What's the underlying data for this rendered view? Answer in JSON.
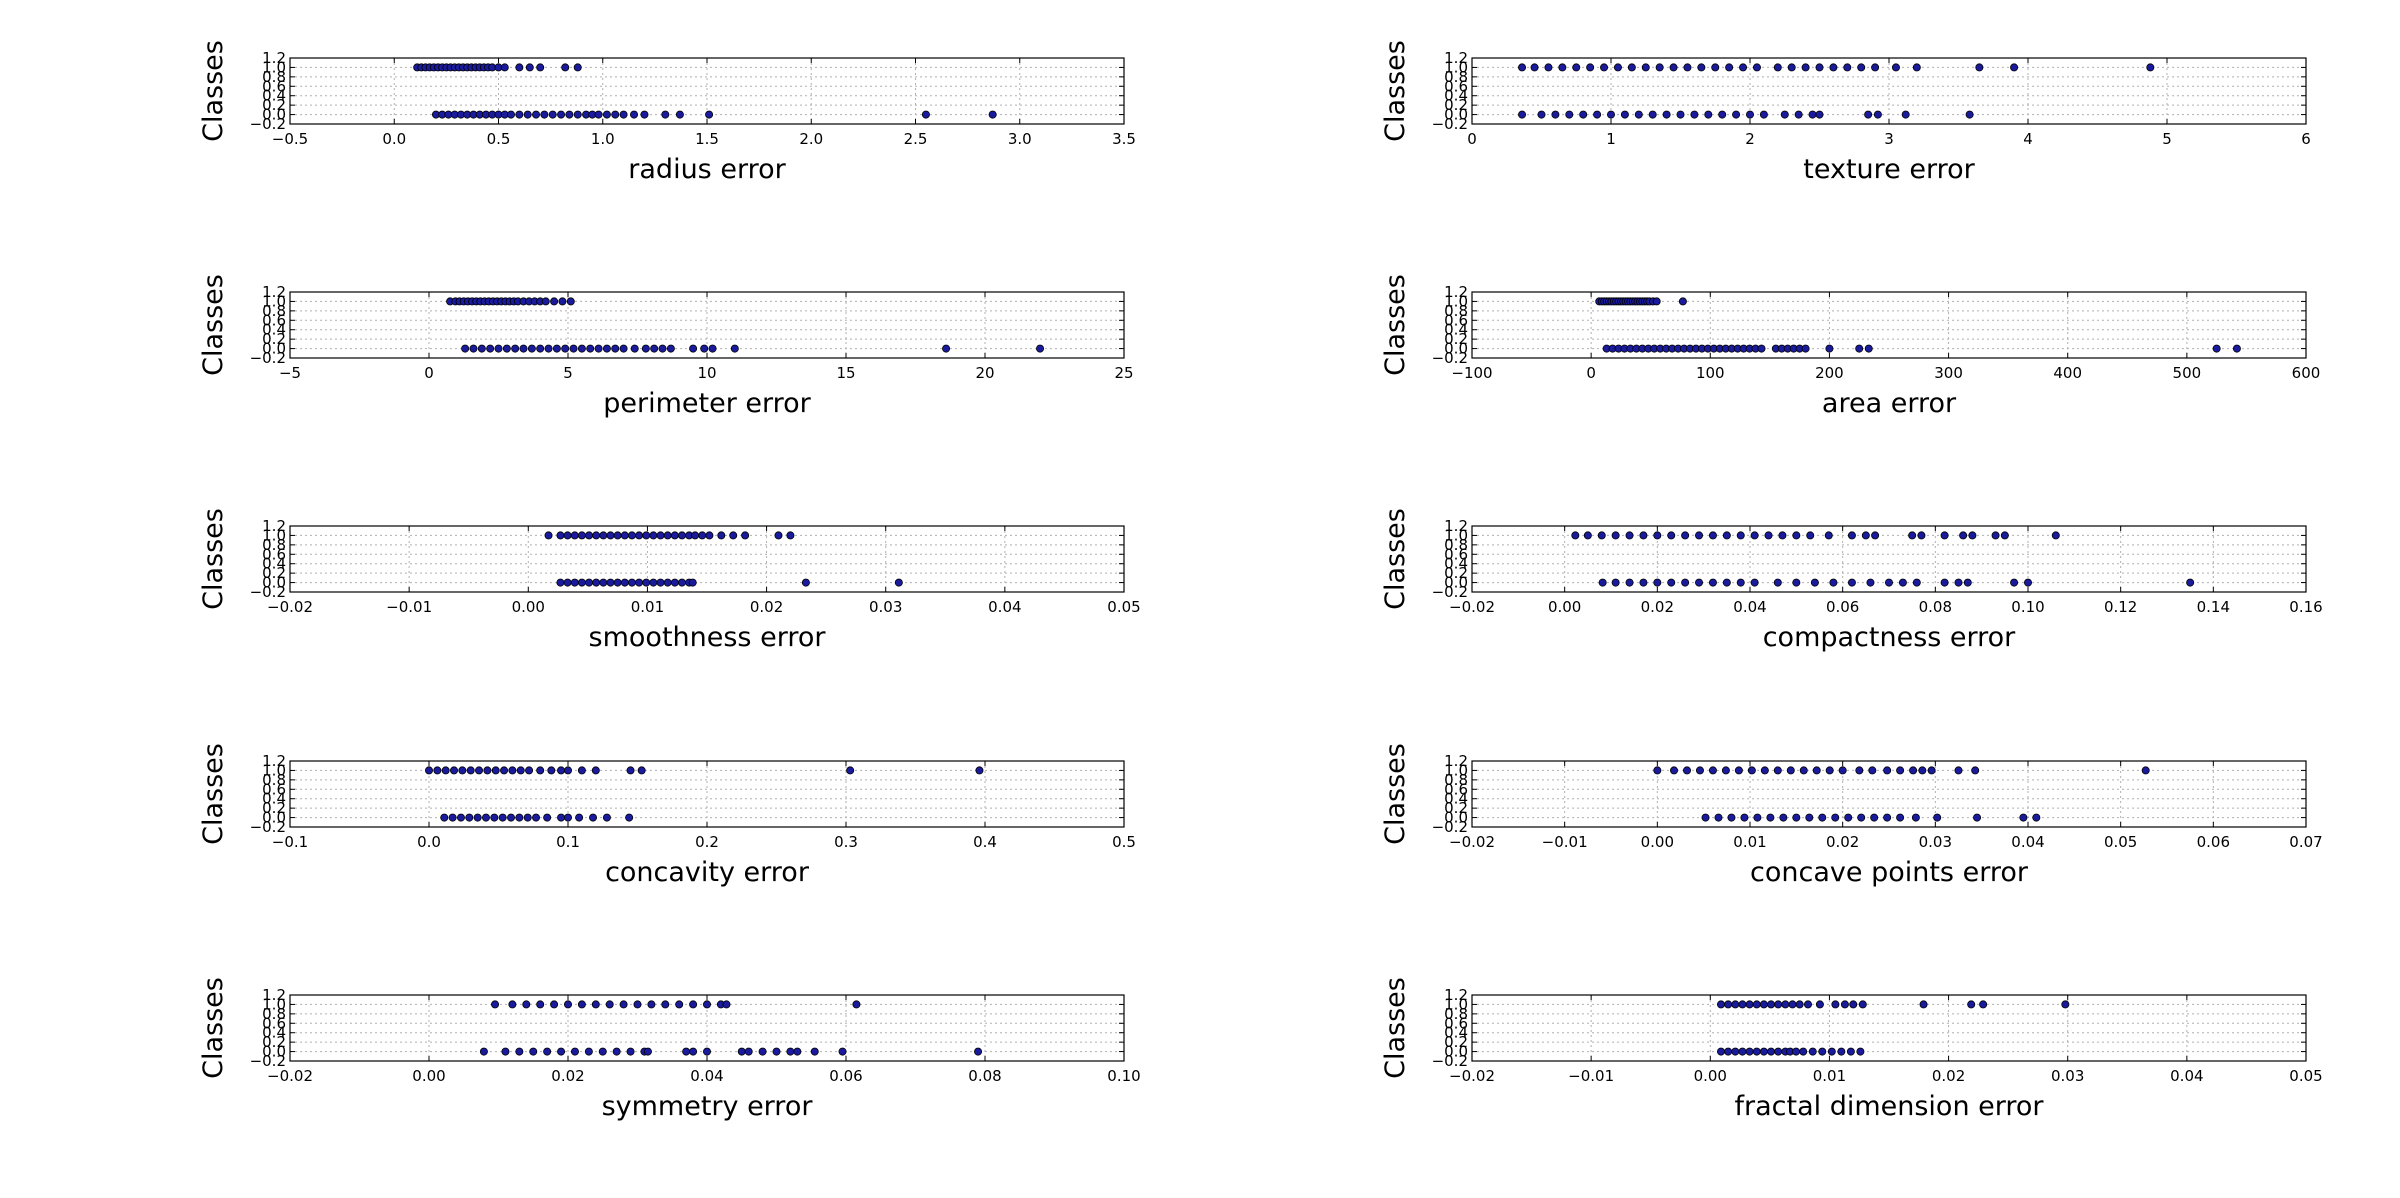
{
  "colors": {
    "point": "#1a1a9c",
    "grid": "#b0b0b0"
  },
  "chart_data": [
    {
      "type": "scatter",
      "xlabel": "radius error",
      "ylabel": "Classes",
      "xlim": [
        -0.5,
        3.5
      ],
      "xticks": [
        "−0.5",
        "0.0",
        "0.5",
        "1.0",
        "1.5",
        "2.0",
        "2.5",
        "3.0",
        "3.5"
      ],
      "ylim": [
        -0.2,
        1.2
      ],
      "yticks": [
        "−0.2",
        "0.0",
        "0.2",
        "0.4",
        "0.6",
        "0.8",
        "1.0",
        "1.2"
      ],
      "grid": true,
      "series": [
        {
          "class": 1,
          "x": [
            0.11,
            0.13,
            0.15,
            0.17,
            0.19,
            0.21,
            0.23,
            0.25,
            0.27,
            0.29,
            0.31,
            0.33,
            0.35,
            0.37,
            0.39,
            0.41,
            0.43,
            0.45,
            0.47,
            0.5,
            0.53,
            0.6,
            0.65,
            0.7,
            0.82,
            0.88
          ]
        },
        {
          "class": 0,
          "x": [
            0.2,
            0.23,
            0.26,
            0.29,
            0.32,
            0.35,
            0.38,
            0.41,
            0.44,
            0.47,
            0.5,
            0.53,
            0.56,
            0.6,
            0.64,
            0.68,
            0.72,
            0.76,
            0.8,
            0.84,
            0.88,
            0.92,
            0.95,
            0.98,
            1.02,
            1.06,
            1.1,
            1.15,
            1.2,
            1.3,
            1.37,
            1.51,
            2.55,
            2.87
          ]
        }
      ]
    },
    {
      "type": "scatter",
      "xlabel": "texture error",
      "ylabel": "Classes",
      "xlim": [
        0,
        6
      ],
      "xticks": [
        "0",
        "1",
        "2",
        "3",
        "4",
        "5",
        "6"
      ],
      "ylim": [
        -0.2,
        1.2
      ],
      "yticks": [
        "−0.2",
        "0.0",
        "0.2",
        "0.4",
        "0.6",
        "0.8",
        "1.0",
        "1.2"
      ],
      "grid": true,
      "series": [
        {
          "class": 1,
          "x": [
            0.36,
            0.45,
            0.55,
            0.65,
            0.75,
            0.85,
            0.95,
            1.05,
            1.15,
            1.25,
            1.35,
            1.45,
            1.55,
            1.65,
            1.75,
            1.85,
            1.95,
            2.05,
            2.2,
            2.3,
            2.4,
            2.5,
            2.6,
            2.7,
            2.8,
            2.9,
            3.05,
            3.2,
            3.65,
            3.9,
            4.88
          ]
        },
        {
          "class": 0,
          "x": [
            0.36,
            0.5,
            0.6,
            0.7,
            0.8,
            0.9,
            1.0,
            1.1,
            1.2,
            1.3,
            1.4,
            1.5,
            1.6,
            1.7,
            1.8,
            1.9,
            2.0,
            2.1,
            2.25,
            2.35,
            2.45,
            2.5,
            2.85,
            2.92,
            3.12,
            3.58
          ]
        }
      ]
    },
    {
      "type": "scatter",
      "xlabel": "perimeter error",
      "ylabel": "Classes",
      "xlim": [
        -5,
        25
      ],
      "xticks": [
        "−5",
        "0",
        "5",
        "10",
        "15",
        "20",
        "25"
      ],
      "ylim": [
        -0.2,
        1.2
      ],
      "yticks": [
        "−0.2",
        "0.0",
        "0.2",
        "0.4",
        "0.6",
        "0.8",
        "1.0",
        "1.2"
      ],
      "grid": true,
      "series": [
        {
          "class": 1,
          "x": [
            0.76,
            0.95,
            1.1,
            1.25,
            1.4,
            1.55,
            1.7,
            1.85,
            2.0,
            2.15,
            2.3,
            2.45,
            2.6,
            2.75,
            2.9,
            3.05,
            3.2,
            3.4,
            3.6,
            3.8,
            4.0,
            4.2,
            4.5,
            4.8,
            5.1
          ]
        },
        {
          "class": 0,
          "x": [
            1.3,
            1.6,
            1.9,
            2.2,
            2.5,
            2.8,
            3.1,
            3.4,
            3.7,
            4.0,
            4.3,
            4.6,
            4.9,
            5.2,
            5.5,
            5.8,
            6.1,
            6.4,
            6.7,
            7.0,
            7.4,
            7.8,
            8.1,
            8.4,
            8.7,
            9.5,
            9.9,
            10.2,
            11.0,
            18.6,
            21.98
          ]
        }
      ]
    },
    {
      "type": "scatter",
      "xlabel": "area error",
      "ylabel": "Classes",
      "xlim": [
        -100,
        600
      ],
      "xticks": [
        "−100",
        "0",
        "100",
        "200",
        "300",
        "400",
        "500",
        "600"
      ],
      "ylim": [
        -0.2,
        1.2
      ],
      "yticks": [
        "−0.2",
        "0.0",
        "0.2",
        "0.4",
        "0.6",
        "0.8",
        "1.0",
        "1.2"
      ],
      "grid": true,
      "series": [
        {
          "class": 1,
          "x": [
            6.8,
            9,
            11,
            13,
            15,
            17,
            19,
            21,
            23,
            25,
            27,
            29,
            31,
            33,
            35,
            37,
            39,
            41,
            43,
            45,
            47,
            49,
            52,
            55,
            77
          ]
        },
        {
          "class": 0,
          "x": [
            13,
            18,
            23,
            28,
            33,
            38,
            43,
            48,
            53,
            58,
            63,
            68,
            73,
            78,
            83,
            88,
            93,
            98,
            103,
            108,
            113,
            118,
            123,
            128,
            133,
            138,
            143,
            155,
            160,
            165,
            170,
            175,
            180,
            200,
            225,
            233,
            525,
            542
          ]
        }
      ]
    },
    {
      "type": "scatter",
      "xlabel": "smoothness error",
      "ylabel": "Classes",
      "xlim": [
        -0.02,
        0.05
      ],
      "xticks": [
        "−0.02",
        "−0.01",
        "0.00",
        "0.01",
        "0.02",
        "0.03",
        "0.04",
        "0.05"
      ],
      "ylim": [
        -0.2,
        1.2
      ],
      "yticks": [
        "−0.2",
        "0.0",
        "0.2",
        "0.4",
        "0.6",
        "0.8",
        "1.0",
        "1.2"
      ],
      "grid": true,
      "series": [
        {
          "class": 1,
          "x": [
            0.0017,
            0.0027,
            0.0033,
            0.0039,
            0.0045,
            0.0051,
            0.0057,
            0.0063,
            0.0069,
            0.0075,
            0.0081,
            0.0087,
            0.0093,
            0.0099,
            0.0105,
            0.0111,
            0.0117,
            0.0123,
            0.0129,
            0.0135,
            0.014,
            0.0146,
            0.0152,
            0.0162,
            0.0172,
            0.0182,
            0.021,
            0.022
          ]
        },
        {
          "class": 0,
          "x": [
            0.0027,
            0.0033,
            0.0039,
            0.0045,
            0.0051,
            0.0057,
            0.0063,
            0.0069,
            0.0075,
            0.0081,
            0.0087,
            0.0093,
            0.0099,
            0.0105,
            0.0111,
            0.0117,
            0.0123,
            0.0129,
            0.0135,
            0.0138,
            0.0233,
            0.0311
          ]
        }
      ]
    },
    {
      "type": "scatter",
      "xlabel": "compactness error",
      "ylabel": "Classes",
      "xlim": [
        -0.02,
        0.16
      ],
      "xticks": [
        "−0.02",
        "0.00",
        "0.02",
        "0.04",
        "0.06",
        "0.08",
        "0.10",
        "0.12",
        "0.14",
        "0.16"
      ],
      "ylim": [
        -0.2,
        1.2
      ],
      "yticks": [
        "−0.2",
        "0.0",
        "0.2",
        "0.4",
        "0.6",
        "0.8",
        "1.0",
        "1.2"
      ],
      "grid": true,
      "series": [
        {
          "class": 1,
          "x": [
            0.0023,
            0.005,
            0.008,
            0.011,
            0.014,
            0.017,
            0.02,
            0.023,
            0.026,
            0.029,
            0.032,
            0.035,
            0.038,
            0.041,
            0.044,
            0.047,
            0.05,
            0.053,
            0.057,
            0.062,
            0.065,
            0.067,
            0.075,
            0.077,
            0.082,
            0.086,
            0.088,
            0.093,
            0.095,
            0.106
          ]
        },
        {
          "class": 0,
          "x": [
            0.0082,
            0.011,
            0.014,
            0.017,
            0.02,
            0.023,
            0.026,
            0.029,
            0.032,
            0.035,
            0.038,
            0.041,
            0.046,
            0.05,
            0.054,
            0.058,
            0.062,
            0.066,
            0.07,
            0.073,
            0.076,
            0.082,
            0.085,
            0.087,
            0.097,
            0.1,
            0.135
          ]
        }
      ]
    },
    {
      "type": "scatter",
      "xlabel": "concavity error",
      "ylabel": "Classes",
      "xlim": [
        -0.1,
        0.5
      ],
      "xticks": [
        "−0.1",
        "0.0",
        "0.1",
        "0.2",
        "0.3",
        "0.4",
        "0.5"
      ],
      "ylim": [
        -0.2,
        1.2
      ],
      "yticks": [
        "−0.2",
        "0.0",
        "0.2",
        "0.4",
        "0.6",
        "0.8",
        "1.0",
        "1.2"
      ],
      "grid": true,
      "series": [
        {
          "class": 1,
          "x": [
            0.0,
            0.006,
            0.012,
            0.018,
            0.024,
            0.03,
            0.036,
            0.042,
            0.048,
            0.054,
            0.06,
            0.066,
            0.072,
            0.08,
            0.088,
            0.095,
            0.1,
            0.11,
            0.12,
            0.145,
            0.153,
            0.303,
            0.396
          ]
        },
        {
          "class": 0,
          "x": [
            0.011,
            0.017,
            0.023,
            0.029,
            0.035,
            0.041,
            0.047,
            0.053,
            0.059,
            0.065,
            0.071,
            0.077,
            0.085,
            0.095,
            0.1,
            0.108,
            0.118,
            0.128,
            0.144
          ]
        }
      ]
    },
    {
      "type": "scatter",
      "xlabel": "concave points error",
      "ylabel": "Classes",
      "xlim": [
        -0.02,
        0.07
      ],
      "xticks": [
        "−0.02",
        "−0.01",
        "0.00",
        "0.01",
        "0.02",
        "0.03",
        "0.04",
        "0.05",
        "0.06",
        "0.07"
      ],
      "ylim": [
        -0.2,
        1.2
      ],
      "yticks": [
        "−0.2",
        "0.0",
        "0.2",
        "0.4",
        "0.6",
        "0.8",
        "1.0",
        "1.2"
      ],
      "grid": true,
      "series": [
        {
          "class": 1,
          "x": [
            0.0,
            0.0018,
            0.0032,
            0.0046,
            0.006,
            0.0074,
            0.0088,
            0.0102,
            0.0116,
            0.013,
            0.0144,
            0.0158,
            0.0172,
            0.0186,
            0.02,
            0.0218,
            0.0232,
            0.0248,
            0.0262,
            0.0276,
            0.0286,
            0.0296,
            0.0325,
            0.0343,
            0.0527
          ]
        },
        {
          "class": 0,
          "x": [
            0.0052,
            0.0066,
            0.008,
            0.0094,
            0.0108,
            0.0122,
            0.0136,
            0.015,
            0.0164,
            0.0178,
            0.0192,
            0.0206,
            0.022,
            0.0234,
            0.0248,
            0.0262,
            0.0279,
            0.0302,
            0.0345,
            0.0395,
            0.0409
          ]
        }
      ]
    },
    {
      "type": "scatter",
      "xlabel": "symmetry error",
      "ylabel": "Classes",
      "xlim": [
        -0.02,
        0.1
      ],
      "xticks": [
        "−0.02",
        "0.00",
        "0.02",
        "0.04",
        "0.06",
        "0.08",
        "0.10"
      ],
      "ylim": [
        -0.2,
        1.2
      ],
      "yticks": [
        "−0.2",
        "0.0",
        "0.2",
        "0.4",
        "0.6",
        "0.8",
        "1.0",
        "1.2"
      ],
      "grid": true,
      "series": [
        {
          "class": 1,
          "x": [
            0.0095,
            0.012,
            0.014,
            0.016,
            0.018,
            0.02,
            0.022,
            0.024,
            0.026,
            0.028,
            0.03,
            0.032,
            0.034,
            0.036,
            0.038,
            0.04,
            0.042,
            0.0428,
            0.0615
          ]
        },
        {
          "class": 0,
          "x": [
            0.0079,
            0.011,
            0.013,
            0.015,
            0.017,
            0.019,
            0.021,
            0.023,
            0.025,
            0.027,
            0.029,
            0.031,
            0.0315,
            0.037,
            0.038,
            0.04,
            0.045,
            0.046,
            0.048,
            0.05,
            0.052,
            0.053,
            0.0555,
            0.0595,
            0.079
          ]
        }
      ]
    },
    {
      "type": "scatter",
      "xlabel": "fractal dimension error",
      "ylabel": "Classes",
      "xlim": [
        -0.02,
        0.05
      ],
      "xticks": [
        "−0.02",
        "−0.01",
        "0.00",
        "0.01",
        "0.02",
        "0.03",
        "0.04",
        "0.05"
      ],
      "ylim": [
        -0.2,
        1.2
      ],
      "yticks": [
        "−0.2",
        "0.0",
        "0.2",
        "0.4",
        "0.6",
        "0.8",
        "1.0",
        "1.2"
      ],
      "grid": true,
      "series": [
        {
          "class": 1,
          "x": [
            0.0009,
            0.0015,
            0.0021,
            0.0027,
            0.0033,
            0.0039,
            0.0045,
            0.0051,
            0.0057,
            0.0063,
            0.0069,
            0.0075,
            0.0082,
            0.0092,
            0.0105,
            0.0113,
            0.012,
            0.0128,
            0.0179,
            0.0219,
            0.0229,
            0.0298
          ]
        },
        {
          "class": 0,
          "x": [
            0.0009,
            0.0015,
            0.0021,
            0.0027,
            0.0033,
            0.0039,
            0.0045,
            0.0051,
            0.0057,
            0.0063,
            0.0067,
            0.0072,
            0.0078,
            0.0086,
            0.0094,
            0.0102,
            0.011,
            0.0118,
            0.0126
          ]
        }
      ]
    }
  ]
}
